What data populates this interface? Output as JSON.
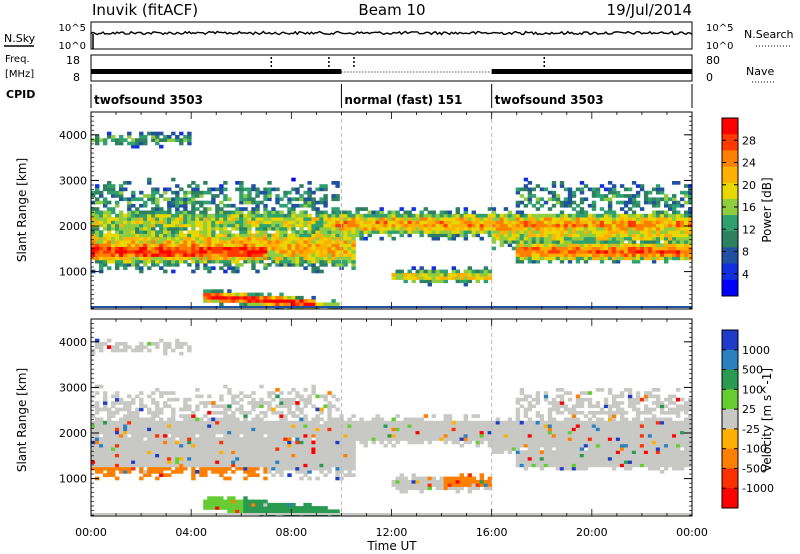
{
  "header": {
    "station": "Inuvik (fitACF)",
    "beam": "Beam 10",
    "date": "19/Jul/2014"
  },
  "sky_panel": {
    "left_label": "N.Sky",
    "right_label": "N.Search",
    "left_ticks": [
      "10^5",
      "10^0"
    ],
    "right_ticks": [
      "10^5",
      "10^0"
    ]
  },
  "freq_panel": {
    "label_line1": "Freq.",
    "label_line2": "[MHz]",
    "right_label": "Nave",
    "left_ticks": [
      "18",
      "8"
    ],
    "right_ticks": [
      "80",
      "0"
    ]
  },
  "cpid": {
    "label": "CPID",
    "segments": [
      {
        "start_h": 0,
        "end_h": 10,
        "name": "twofsound 3503"
      },
      {
        "start_h": 10,
        "end_h": 16,
        "name": "normal (fast) 151"
      },
      {
        "start_h": 16,
        "end_h": 24,
        "name": "twofsound 3503"
      }
    ]
  },
  "power_panel": {
    "ylabel": "Slant Range [km]",
    "cbar_label": "Power [dB]",
    "cbar_ticks": [
      "28",
      "24",
      "20",
      "16",
      "12",
      "8",
      "4"
    ],
    "cbar_colors": [
      "#ff0000",
      "#ff3a00",
      "#ff8000",
      "#ffb000",
      "#e8d800",
      "#90cc40",
      "#30a070",
      "#2d8060",
      "#2050a0",
      "#1030e0",
      "#0000ff"
    ]
  },
  "velocity_panel": {
    "ylabel": "Slant Range [km]",
    "cbar_label": "Velocity [m s^-1]",
    "cbar_ticks": [
      "1000",
      "500",
      "100",
      "25",
      "-25",
      "-100",
      "-500",
      "-1000"
    ],
    "cbar_colors": [
      "#1e3cc8",
      "#2a80c0",
      "#2a9a50",
      "#66cc33",
      "#c8c8c4",
      "#ffb000",
      "#ff8000",
      "#ff3000",
      "#ff0000"
    ]
  },
  "chart_data": [
    {
      "type": "heatmap",
      "name": "power",
      "xlabel": "Time UT",
      "x_tick_labels": [
        "00:00",
        "04:00",
        "08:00",
        "12:00",
        "16:00",
        "20:00",
        "00:00"
      ],
      "xlim": [
        0,
        24
      ],
      "ylabel": "Slant Range [km]",
      "ylim": [
        180,
        4500
      ],
      "y_tick_labels": [
        "1000",
        "2000",
        "3000",
        "4000"
      ],
      "bands": [
        {
          "t0": 0,
          "t1": 10,
          "r0": 900,
          "r1": 2100,
          "level": "medium-high"
        },
        {
          "t0": 0,
          "t1": 7,
          "r0": 1200,
          "r1": 1700,
          "level": "high"
        },
        {
          "t0": 5,
          "t1": 10,
          "r0": 200,
          "r1": 600,
          "level": "high"
        },
        {
          "t0": 10,
          "t1": 24,
          "r0": 1700,
          "r1": 2400,
          "level": "medium"
        },
        {
          "t0": 17,
          "t1": 24,
          "r0": 1300,
          "r1": 1700,
          "level": "high"
        }
      ]
    },
    {
      "type": "heatmap",
      "name": "velocity",
      "xlabel": "Time UT",
      "x_tick_labels": [
        "00:00",
        "04:00",
        "08:00",
        "12:00",
        "16:00",
        "20:00",
        "00:00"
      ],
      "xlim": [
        0,
        24
      ],
      "ylabel": "Slant Range [km]",
      "ylim": [
        180,
        4500
      ],
      "y_tick_labels": [
        "1000",
        "2000",
        "3000",
        "4000"
      ],
      "bands": [
        {
          "t0": 0,
          "t1": 24,
          "r0": 1500,
          "r1": 2600,
          "level": "low (~0)"
        },
        {
          "t0": 0,
          "t1": 7,
          "r0": 900,
          "r1": 1200,
          "level": "negative (-100 to -500)"
        },
        {
          "t0": 0,
          "t1": 10,
          "r0": 200,
          "r1": 900,
          "level": "positive (25 to 100)"
        }
      ]
    }
  ],
  "footer": {
    "xaxis_label": "Time UT"
  }
}
